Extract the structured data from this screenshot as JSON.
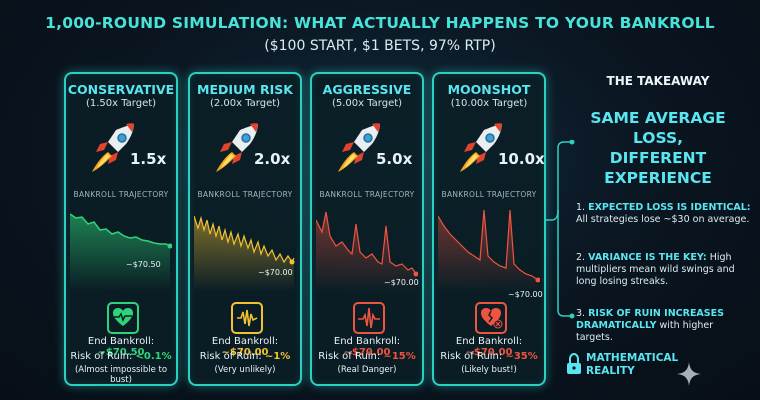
{
  "title": "1,000-ROUND SIMULATION: WHAT ACTUALLY HAPPENS TO YOUR BANKROLL",
  "subtitle": "($100 START, $1 BETS, 97% RTP)",
  "traj_label": "BANKROLL TRAJECTORY",
  "end_prefix": "End Bankroll: ",
  "risk_prefix": "Risk of Ruin: ",
  "cards": [
    {
      "name": "CONSERVATIVE",
      "target": "(1.50x Target)",
      "mult": "1.5x",
      "end_label": "~$70.50",
      "end_value": "~$70.50",
      "risk_value": "<0.1%",
      "note": "(Almost impossible to bust)",
      "color": "#2fd47a",
      "icon": "heart-pulse-icon"
    },
    {
      "name": "MEDIUM RISK",
      "target": "(2.00x Target)",
      "mult": "2.0x",
      "end_label": "~$70.00",
      "end_value": "~$70.00",
      "risk_value": "~1%",
      "note": "(Very unlikely)",
      "color": "#f2c230",
      "icon": "waveform-icon"
    },
    {
      "name": "AGGRESSIVE",
      "target": "(5.00x Target)",
      "mult": "5.0x",
      "end_label": "~$70.00",
      "end_value": "~$70.00",
      "risk_value": "~15%",
      "note": "(Real Danger)",
      "color": "#f0533f",
      "icon": "spike-pulse-icon"
    },
    {
      "name": "MOONSHOT",
      "target": "(10.00x Target)",
      "mult": "10.0x",
      "end_label": "~$70.00",
      "end_value": "~$70.00",
      "risk_value": "~35%",
      "note": "(Likely bust!)",
      "color": "#f0533f",
      "icon": "broken-heart-icon"
    }
  ],
  "takeaway": {
    "heading": "THE TAKEAWAY",
    "big": [
      "SAME AVERAGE",
      "LOSS,",
      "DIFFERENT",
      "EXPERIENCE"
    ],
    "items": [
      {
        "num": "1.",
        "bold": "EXPECTED LOSS IS IDENTICAL:",
        "text": " All strategies lose ~$30 on average."
      },
      {
        "num": "2.",
        "bold": "VARIANCE IS THE KEY:",
        "text": " High multipliers mean wild swings and long losing streaks."
      },
      {
        "num": "3.",
        "bold": "RISK OF RUIN INCREASES DRAMATICALLY",
        "text": " with higher targets."
      }
    ],
    "reality": [
      "MATHEMATICAL",
      "REALITY"
    ]
  }
}
